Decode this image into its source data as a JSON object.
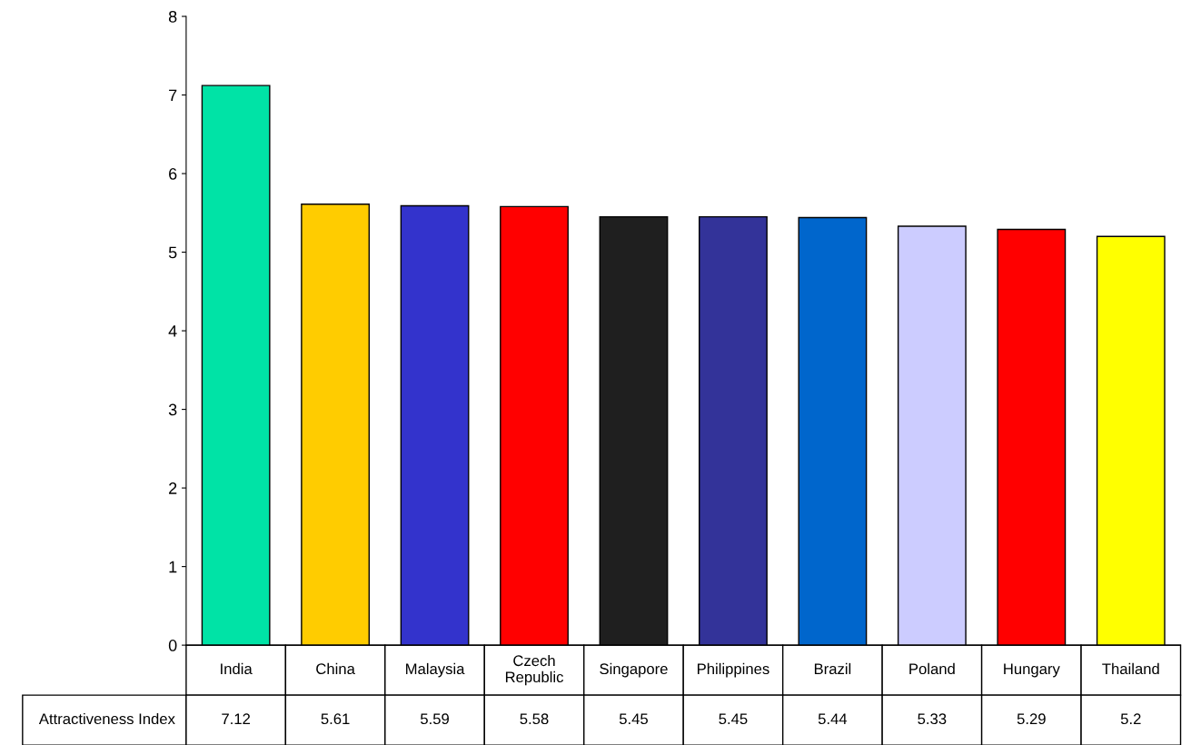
{
  "chart_data": {
    "type": "bar",
    "categories": [
      "India",
      "China",
      "Malaysia",
      "Czech Republic",
      "Singapore",
      "Philippines",
      "Brazil",
      "Poland",
      "Hungary",
      "Thailand"
    ],
    "series": [
      {
        "name": "Attractiveness Index",
        "values": [
          7.12,
          5.61,
          5.59,
          5.58,
          5.45,
          5.45,
          5.44,
          5.33,
          5.29,
          5.2
        ],
        "colors": [
          "#00e3a6",
          "#ffcc00",
          "#3333cc",
          "#ff0000",
          "#1f1f1f",
          "#333399",
          "#0066cc",
          "#ccccff",
          "#ff0000",
          "#ffff00"
        ]
      }
    ],
    "ylim": [
      0,
      8
    ],
    "yticks": [
      0,
      1,
      2,
      3,
      4,
      5,
      6,
      7,
      8
    ],
    "grid": false,
    "legend": false,
    "data_labels": true
  }
}
